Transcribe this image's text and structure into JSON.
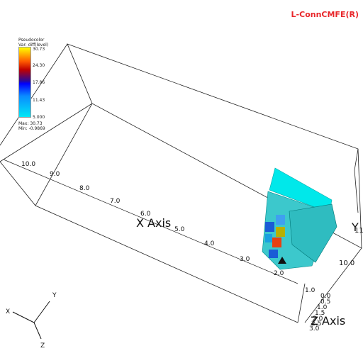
{
  "header": {
    "title": "L-ConnCMFE(R)"
  },
  "legend": {
    "plot_type": "Pseudocolor",
    "variable": "Var: diff(level)",
    "ticks": [
      "30.73",
      "24.30",
      "17.86",
      "11.43",
      "5.000"
    ],
    "max_label": "Max: 30.73",
    "min_label": "Min: -0.9869"
  },
  "axes": {
    "x_title": "X Axis",
    "y_title": "Y",
    "z_title": "Z Axis",
    "x_ticks": [
      "10.0",
      "9.0",
      "8.0",
      "7.0",
      "6.0",
      "5.0",
      "4.0",
      "3.0",
      "2.0",
      "1.0"
    ],
    "y_ticks": [
      "11.",
      "10.0"
    ],
    "z_ticks": [
      "0.0",
      "0.5",
      "1.0",
      "1.5",
      "2.0",
      "2.5",
      "3.0"
    ]
  },
  "triad": {
    "x": "X",
    "y": "Y",
    "z": "Z"
  },
  "colors": {
    "accent": "#e8262a",
    "surface": "#00e8ea",
    "block": "#3cc8cc"
  }
}
